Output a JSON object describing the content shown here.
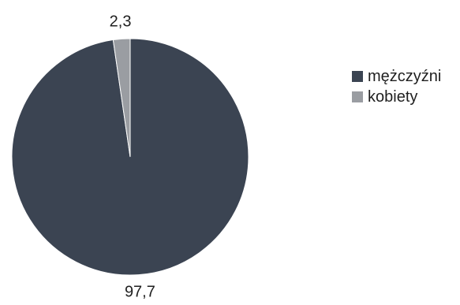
{
  "chart_data": {
    "type": "pie",
    "title": "",
    "slices": [
      {
        "label": "mężczyźni",
        "value": 97.7,
        "display": "97,7",
        "color": "#3b4452"
      },
      {
        "label": "kobiety",
        "value": 2.3,
        "display": "2,3",
        "color": "#9a9da2"
      }
    ],
    "start_angle_deg": 0,
    "direction": "clockwise",
    "legend_position": "right"
  }
}
